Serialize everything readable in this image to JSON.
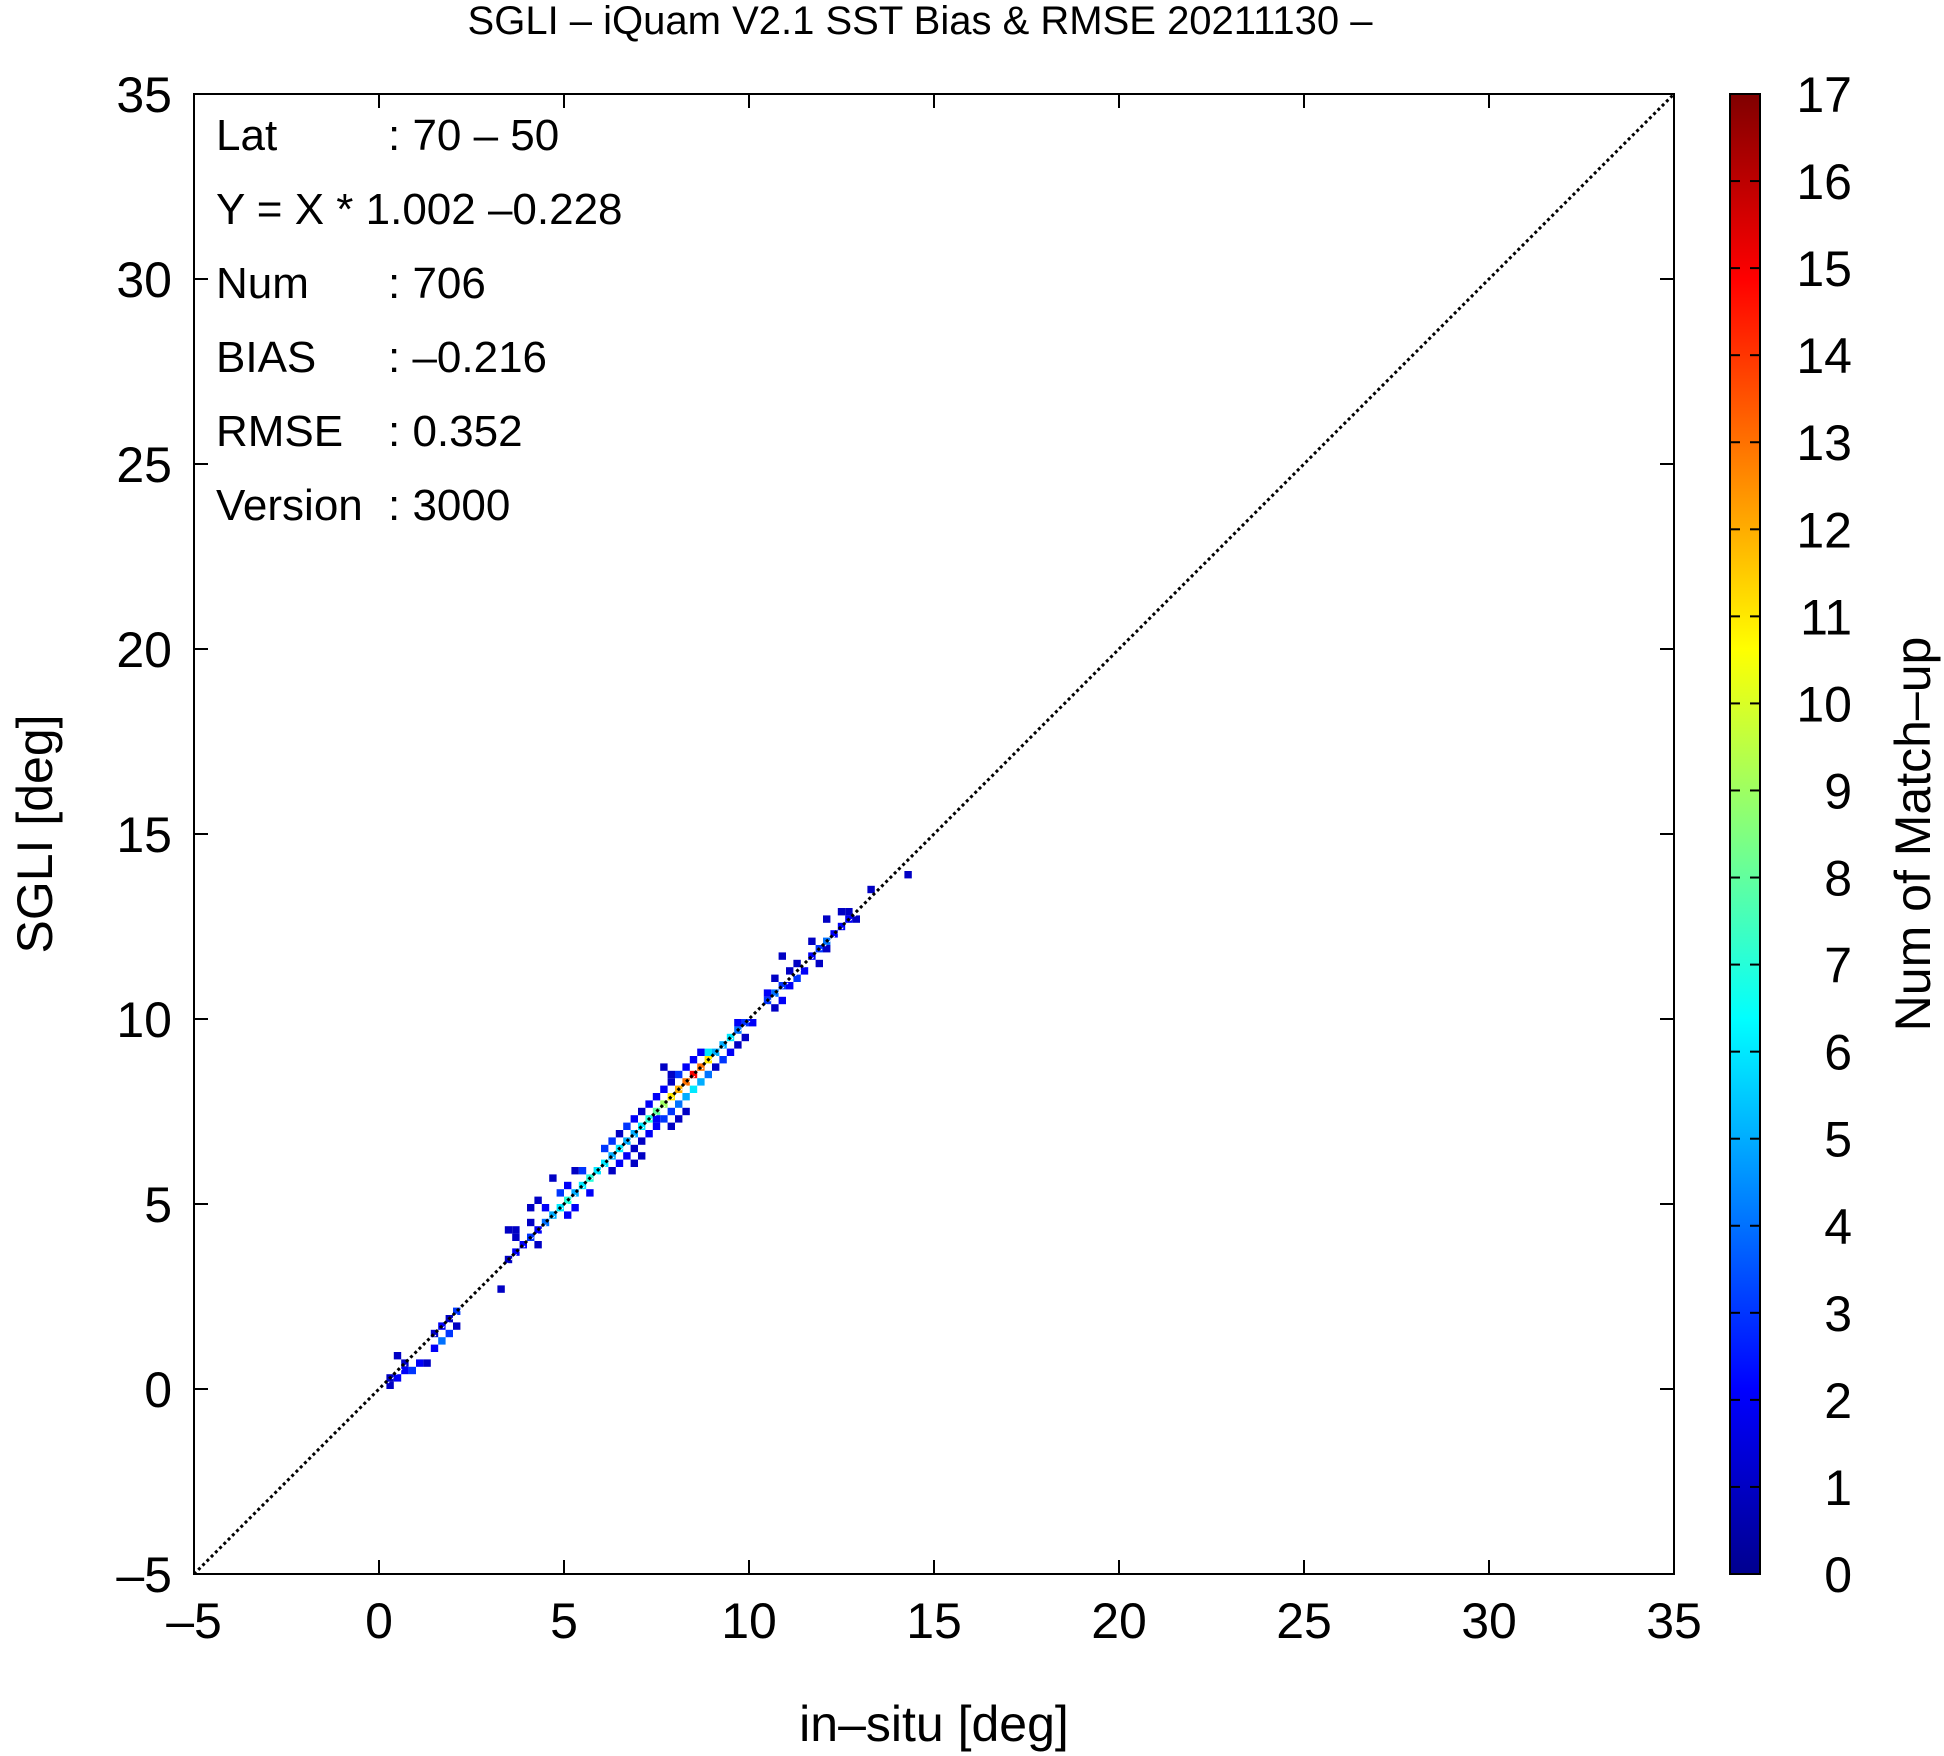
{
  "chart_data": {
    "type": "heatmap",
    "title": "SGLI – iQuam V2.1 SST Bias & RMSE 20211130 –",
    "xlabel": "in–situ [deg]",
    "ylabel": "SGLI [deg]",
    "xlim": [
      -5,
      35
    ],
    "ylim": [
      -5,
      35
    ],
    "xticks": [
      -5,
      0,
      5,
      10,
      15,
      20,
      25,
      30,
      35
    ],
    "yticks": [
      -5,
      0,
      5,
      10,
      15,
      20,
      25,
      30,
      35
    ],
    "xtick_labels": [
      "–5",
      "0",
      "5",
      "10",
      "15",
      "20",
      "25",
      "30",
      "35"
    ],
    "ytick_labels": [
      "–5",
      "0",
      "5",
      "10",
      "15",
      "20",
      "25",
      "30",
      "35"
    ],
    "reference_line": "y = x (dotted)",
    "grid": false,
    "colorbar": {
      "label": "Num of Match–up",
      "min": 0,
      "max": 17,
      "ticks": [
        0,
        1,
        2,
        3,
        4,
        5,
        6,
        7,
        8,
        9,
        10,
        11,
        12,
        13,
        14,
        15,
        16,
        17
      ],
      "tick_labels": [
        "0",
        "1",
        "2",
        "3",
        "4",
        "5",
        "6",
        "7",
        "8",
        "9",
        "10",
        "11",
        "12",
        "13",
        "14",
        "15",
        "16",
        "17"
      ],
      "colors": [
        "#00008f",
        "#0000ff",
        "#0080ff",
        "#00ffff",
        "#80ff80",
        "#ffff00",
        "#ff8000",
        "#ff0000",
        "#800000"
      ]
    },
    "annotations": [
      {
        "key": "Lat",
        "value": ": 70 – 50"
      },
      {
        "key": "Y = X * 1.002 –0.228",
        "value": ""
      },
      {
        "key": "Num",
        "value": ": 706"
      },
      {
        "key": "BIAS",
        "value": ": –0.216"
      },
      {
        "key": "RMSE",
        "value": ": 0.352"
      },
      {
        "key": "Version",
        "value": ": 3000"
      }
    ],
    "bin_size": 0.2,
    "cells": [
      [
        0.2,
        0.0,
        1
      ],
      [
        0.4,
        0.2,
        2
      ],
      [
        0.6,
        0.4,
        2
      ],
      [
        0.6,
        0.6,
        1
      ],
      [
        0.8,
        0.4,
        3
      ],
      [
        1.0,
        0.6,
        2
      ],
      [
        1.2,
        0.6,
        1
      ],
      [
        0.4,
        0.8,
        1
      ],
      [
        0.2,
        0.2,
        1
      ],
      [
        1.4,
        1.0,
        2
      ],
      [
        1.6,
        1.2,
        4
      ],
      [
        1.8,
        1.4,
        3
      ],
      [
        1.6,
        1.6,
        2
      ],
      [
        2.0,
        1.6,
        1
      ],
      [
        1.4,
        1.4,
        1
      ],
      [
        1.8,
        1.8,
        1
      ],
      [
        2.0,
        2.0,
        3
      ],
      [
        3.4,
        3.4,
        1
      ],
      [
        3.6,
        3.6,
        2
      ],
      [
        3.8,
        3.8,
        2
      ],
      [
        4.0,
        4.0,
        3
      ],
      [
        4.2,
        4.2,
        2
      ],
      [
        3.6,
        4.0,
        1
      ],
      [
        4.0,
        4.4,
        1
      ],
      [
        3.2,
        2.6,
        1
      ],
      [
        4.4,
        4.4,
        4
      ],
      [
        4.2,
        3.8,
        1
      ],
      [
        3.4,
        4.2,
        1
      ],
      [
        3.6,
        4.2,
        1
      ],
      [
        4.6,
        4.6,
        5
      ],
      [
        4.8,
        4.8,
        6
      ],
      [
        5.0,
        5.0,
        7
      ],
      [
        5.2,
        5.2,
        5
      ],
      [
        4.8,
        5.2,
        3
      ],
      [
        5.0,
        4.6,
        2
      ],
      [
        4.4,
        4.8,
        2
      ],
      [
        5.2,
        4.8,
        2
      ],
      [
        4.6,
        5.6,
        1
      ],
      [
        5.4,
        5.4,
        6
      ],
      [
        5.6,
        5.6,
        7
      ],
      [
        5.8,
        5.8,
        6
      ],
      [
        5.4,
        5.8,
        3
      ],
      [
        5.6,
        5.2,
        2
      ],
      [
        5.2,
        5.8,
        1
      ],
      [
        5.0,
        5.4,
        2
      ],
      [
        4.2,
        5.0,
        1
      ],
      [
        4.0,
        4.8,
        1
      ],
      [
        6.0,
        6.0,
        6
      ],
      [
        6.2,
        6.2,
        5
      ],
      [
        6.4,
        6.4,
        6
      ],
      [
        6.6,
        6.6,
        5
      ],
      [
        6.2,
        6.6,
        3
      ],
      [
        6.4,
        6.0,
        2
      ],
      [
        6.0,
        6.4,
        3
      ],
      [
        6.6,
        6.2,
        2
      ],
      [
        6.8,
        6.4,
        1
      ],
      [
        6.8,
        6.8,
        5
      ],
      [
        7.0,
        7.0,
        6
      ],
      [
        6.8,
        7.2,
        2
      ],
      [
        7.2,
        6.8,
        2
      ],
      [
        6.6,
        7.0,
        3
      ],
      [
        7.0,
        6.6,
        1
      ],
      [
        6.4,
        6.8,
        1
      ],
      [
        6.2,
        5.8,
        1
      ],
      [
        6.8,
        6.0,
        1
      ],
      [
        7.0,
        6.2,
        1
      ],
      [
        7.2,
        7.2,
        7
      ],
      [
        7.4,
        7.4,
        8
      ],
      [
        7.6,
        7.6,
        9
      ],
      [
        7.8,
        7.8,
        11
      ],
      [
        8.0,
        8.0,
        12
      ],
      [
        8.2,
        8.2,
        13
      ],
      [
        8.4,
        8.4,
        15
      ],
      [
        8.6,
        8.6,
        13
      ],
      [
        8.8,
        8.8,
        11
      ],
      [
        7.6,
        7.2,
        3
      ],
      [
        7.8,
        7.4,
        3
      ],
      [
        8.0,
        7.6,
        4
      ],
      [
        8.2,
        7.8,
        5
      ],
      [
        8.4,
        8.0,
        6
      ],
      [
        8.6,
        8.2,
        5
      ],
      [
        8.8,
        8.4,
        4
      ],
      [
        8.0,
        8.4,
        3
      ],
      [
        8.2,
        8.6,
        2
      ],
      [
        8.4,
        8.8,
        2
      ],
      [
        7.4,
        7.0,
        2
      ],
      [
        7.2,
        7.6,
        2
      ],
      [
        7.0,
        7.4,
        1
      ],
      [
        7.6,
        8.0,
        2
      ],
      [
        7.8,
        8.2,
        1
      ],
      [
        8.0,
        7.2,
        1
      ],
      [
        7.4,
        7.8,
        2
      ],
      [
        7.4,
        7.2,
        2
      ],
      [
        7.8,
        7.0,
        1
      ],
      [
        7.6,
        8.6,
        1
      ],
      [
        7.8,
        8.4,
        1
      ],
      [
        8.8,
        9.0,
        6
      ],
      [
        9.0,
        9.0,
        5
      ],
      [
        8.6,
        9.0,
        2
      ],
      [
        9.0,
        8.6,
        1
      ],
      [
        8.2,
        7.4,
        1
      ],
      [
        9.2,
        9.2,
        5
      ],
      [
        9.4,
        9.4,
        6
      ],
      [
        9.6,
        9.6,
        4
      ],
      [
        9.8,
        9.8,
        3
      ],
      [
        9.2,
        8.8,
        3
      ],
      [
        9.4,
        9.0,
        2
      ],
      [
        9.6,
        9.2,
        1
      ],
      [
        9.8,
        9.4,
        1
      ],
      [
        10.0,
        9.8,
        2
      ],
      [
        9.6,
        9.8,
        2
      ],
      [
        10.4,
        10.4,
        3
      ],
      [
        10.6,
        10.6,
        4
      ],
      [
        10.8,
        10.8,
        3
      ],
      [
        11.0,
        10.8,
        2
      ],
      [
        10.8,
        10.4,
        2
      ],
      [
        10.6,
        10.2,
        1
      ],
      [
        10.4,
        10.6,
        2
      ],
      [
        11.2,
        11.0,
        3
      ],
      [
        11.0,
        11.2,
        1
      ],
      [
        10.6,
        11.0,
        1
      ],
      [
        11.4,
        11.2,
        2
      ],
      [
        11.2,
        11.4,
        1
      ],
      [
        10.8,
        11.6,
        1
      ],
      [
        11.6,
        11.6,
        2
      ],
      [
        11.8,
        11.8,
        3
      ],
      [
        12.0,
        12.0,
        4
      ],
      [
        12.2,
        12.2,
        2
      ],
      [
        11.8,
        11.4,
        1
      ],
      [
        12.0,
        11.8,
        1
      ],
      [
        11.6,
        12.0,
        1
      ],
      [
        12.4,
        12.4,
        2
      ],
      [
        12.6,
        12.6,
        2
      ],
      [
        12.4,
        12.8,
        1
      ],
      [
        12.6,
        12.8,
        1
      ],
      [
        12.8,
        12.6,
        1
      ],
      [
        12.0,
        12.6,
        1
      ],
      [
        13.2,
        13.4,
        1
      ],
      [
        14.2,
        13.8,
        1
      ]
    ]
  }
}
